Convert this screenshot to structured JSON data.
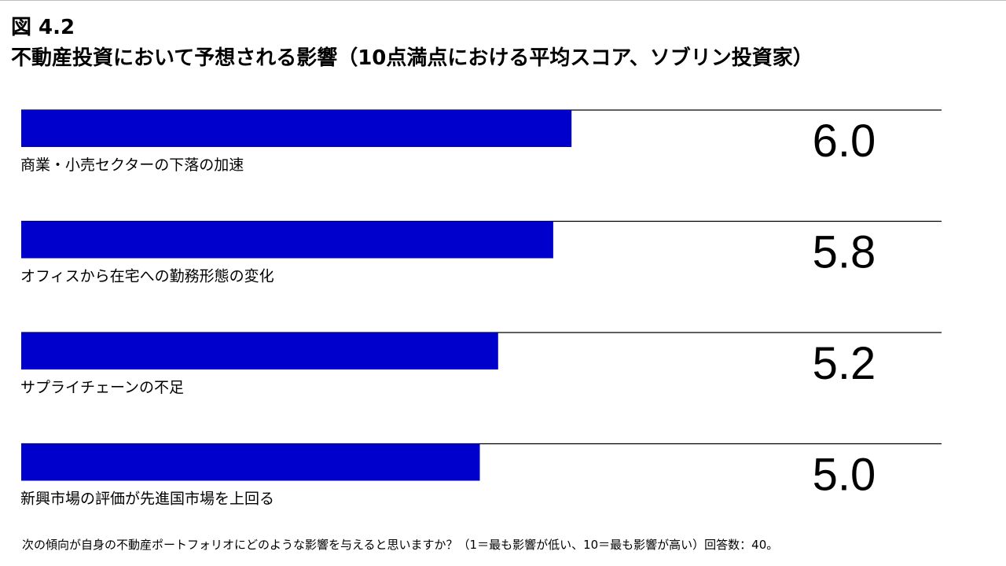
{
  "figure": {
    "label": "図 4.2",
    "title": "不動産投資において予想される影響（10点満点における平均スコア、ソブリン投資家）"
  },
  "colors": {
    "bar": "#0000cc",
    "rule": "#000000",
    "text": "#000000"
  },
  "chart_data": {
    "type": "bar",
    "orientation": "horizontal",
    "title": "不動産投資において予想される影響（10点満点における平均スコア、ソブリン投資家）",
    "categories": [
      "商業・小売セクターの下落の加速",
      "オフィスから在宅への勤務形態の変化",
      "サプライチェーンの不足",
      "新興市場の評価が先進国市場を上回る"
    ],
    "values": [
      6.0,
      5.8,
      5.2,
      5.0
    ],
    "value_labels": [
      "6.0",
      "5.8",
      "5.2",
      "5.0"
    ],
    "xlim": [
      0,
      10
    ],
    "xlabel": "",
    "ylabel": "",
    "grid": false,
    "legend": "none"
  },
  "footnote": "次の傾向が自身の不動産ポートフォリオにどのような影響を与えると思いますか？（1＝最も影響が低い、10＝最も影響が高い）回答数：40。"
}
